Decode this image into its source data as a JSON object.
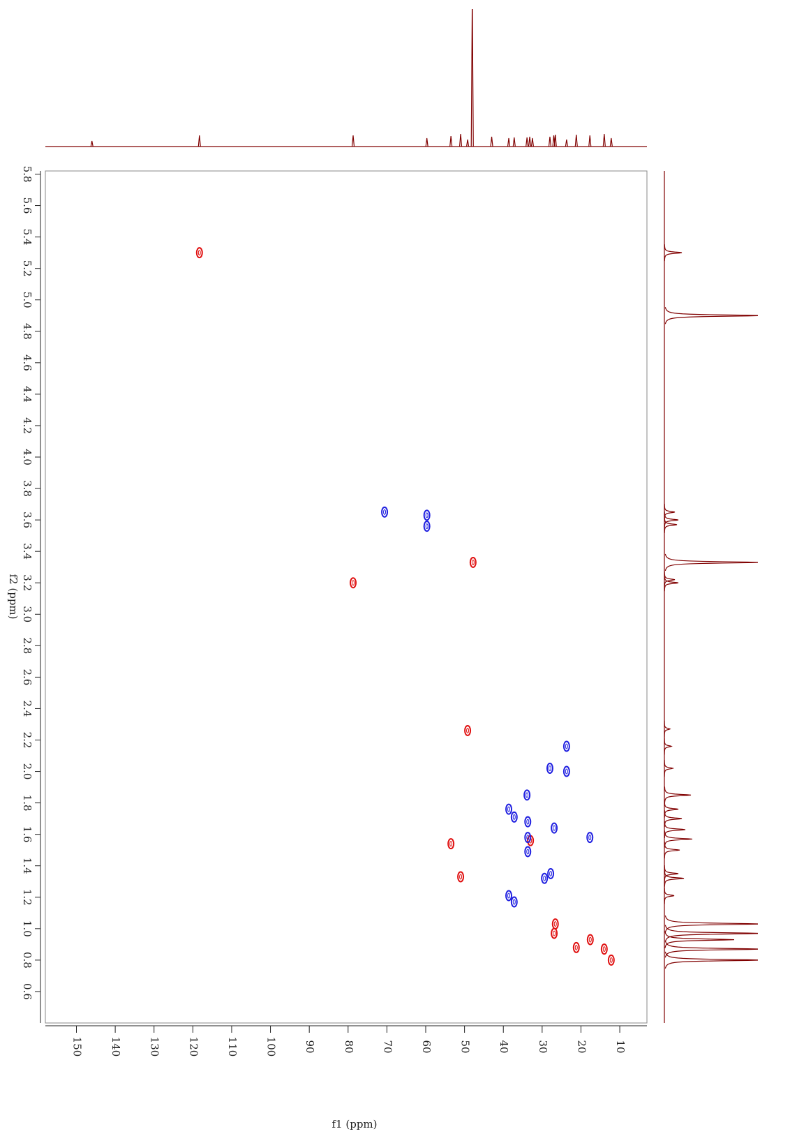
{
  "chart_data": {
    "type": "scatter",
    "x_label": "f1 (ppm)",
    "y_label": "f2 (ppm)",
    "xlim": [
      158,
      3
    ],
    "ylim": [
      5.82,
      0.4
    ],
    "xticks": [
      150,
      140,
      130,
      120,
      110,
      100,
      90,
      80,
      70,
      60,
      50,
      40,
      30,
      20,
      10
    ],
    "yticks": [
      5.8,
      5.6,
      5.4,
      5.2,
      {
        "value": 5.0,
        "label": "5.0"
      },
      4.8,
      4.6,
      4.4,
      4.2,
      {
        "value": 4.0,
        "label": "4.0"
      },
      3.8,
      3.6,
      3.4,
      3.2,
      {
        "value": 3.0,
        "label": "3.0"
      },
      2.8,
      2.6,
      2.4,
      2.2,
      {
        "value": 2.0,
        "label": "2.0"
      },
      1.8,
      1.6,
      1.4,
      1.2,
      {
        "value": 1.0,
        "label": "1.0"
      },
      0.8,
      0.6
    ],
    "series": [
      {
        "color": "#e01010",
        "x": [
          118.3,
          78.7,
          47.8,
          49.2,
          53.5,
          51.0,
          33.0,
          26.6,
          26.9,
          21.2,
          17.6,
          14.0,
          12.2
        ],
        "values": [
          5.3,
          3.2,
          3.33,
          2.26,
          1.54,
          1.33,
          1.56,
          1.03,
          0.97,
          0.88,
          0.93,
          0.87,
          0.8
        ]
      },
      {
        "color": "#2020e0",
        "x": [
          70.6,
          59.7,
          59.7,
          23.7,
          23.7,
          28.0,
          33.9,
          38.6,
          37.2,
          33.7,
          26.9,
          17.7,
          33.7,
          33.7,
          27.8,
          29.4,
          38.6,
          37.2
        ],
        "values": [
          3.65,
          3.63,
          3.56,
          2.16,
          2.0,
          2.02,
          1.85,
          1.76,
          1.71,
          1.68,
          1.64,
          1.58,
          1.58,
          1.49,
          1.35,
          1.32,
          1.21,
          1.17
        ]
      }
    ],
    "f1_projection": {
      "color": "#800000",
      "lim": [
        0,
        197
      ],
      "x": [
        146,
        118.3,
        78.7,
        59.7,
        53.5,
        51.0,
        49.2,
        48.0,
        43.0,
        38.6,
        37.2,
        33.9,
        33.2,
        32.5,
        28.0,
        27.0,
        26.6,
        23.7,
        21.2,
        17.7,
        14.0,
        12.2
      ],
      "values": [
        8,
        16,
        16,
        12,
        15,
        18,
        10,
        220,
        14,
        12,
        13,
        13,
        14,
        12,
        14,
        16,
        17,
        10,
        17,
        16,
        18,
        12
      ]
    },
    "f2_projection": {
      "color": "#800000",
      "lim": [
        0,
        134
      ],
      "x": [
        5.3,
        4.9,
        3.65,
        3.6,
        3.57,
        3.33,
        3.22,
        3.2,
        2.27,
        2.16,
        2.02,
        1.85,
        1.76,
        1.7,
        1.63,
        1.57,
        1.5,
        1.35,
        1.32,
        1.21,
        1.03,
        0.97,
        0.93,
        0.87,
        0.8
      ],
      "values": [
        25,
        140,
        15,
        20,
        18,
        140,
        15,
        20,
        8,
        10,
        12,
        38,
        20,
        25,
        30,
        40,
        22,
        20,
        28,
        14,
        140,
        140,
        100,
        140,
        140
      ]
    }
  }
}
